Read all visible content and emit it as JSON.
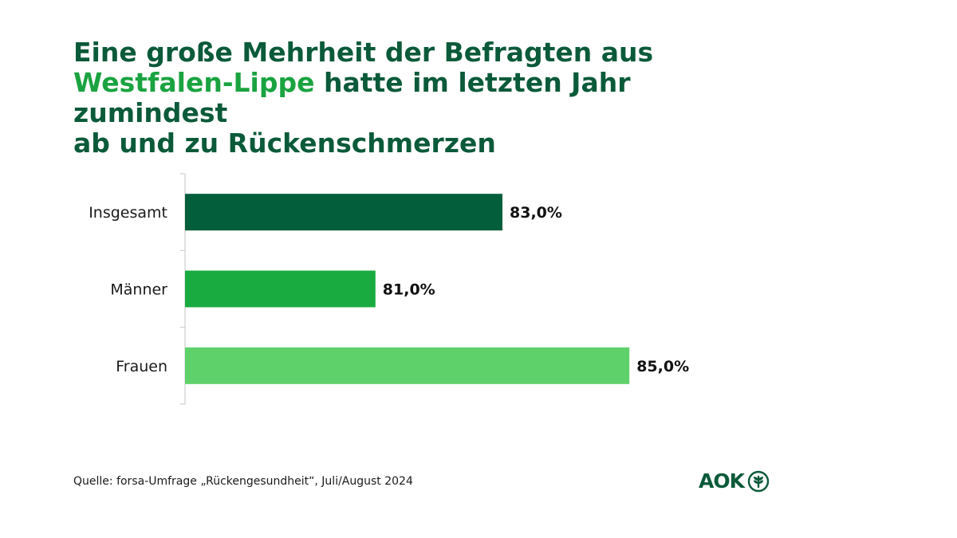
{
  "title": {
    "line1": "Eine große Mehrheit der Befragten aus",
    "highlight": "Westfalen-Lippe",
    "line2_rest": "hatte im letzten Jahr zumindest",
    "line3": "ab und zu Rückenschmerzen"
  },
  "chart_data": {
    "type": "bar",
    "orientation": "horizontal",
    "categories": [
      "Insgesamt",
      "Männer",
      "Frauen"
    ],
    "values": [
      83.0,
      81.0,
      85.0
    ],
    "value_labels": [
      "83,0%",
      "81,0%",
      "85,0%"
    ],
    "colors": [
      "#035e3c",
      "#1aab40",
      "#5fd16a"
    ],
    "xlim": [
      78,
      86
    ],
    "grid": false,
    "legend": "none"
  },
  "source": "Quelle: forsa-Umfrage „Rückengesundheit“, Juli/August 2024",
  "logo": {
    "text": "AOK",
    "icon": "aok-tree-icon",
    "color": "#0b5a3a"
  }
}
